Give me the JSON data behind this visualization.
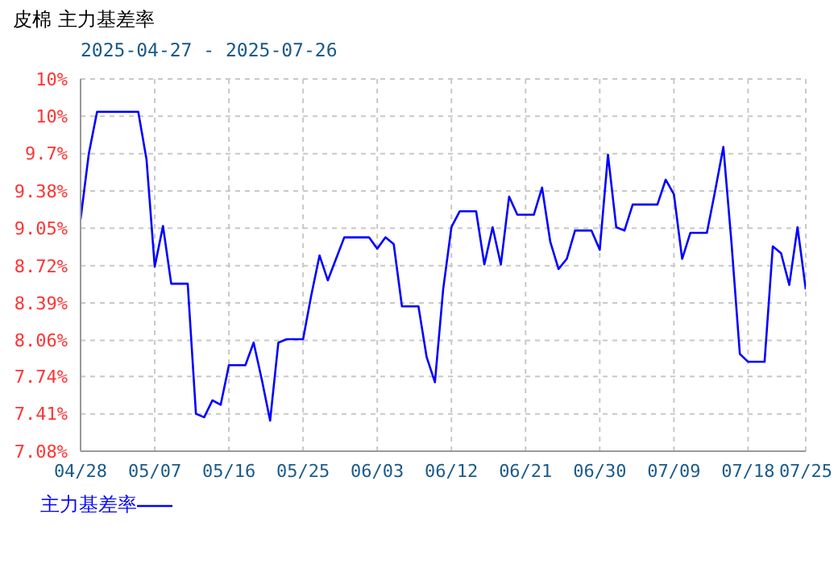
{
  "chart_data": {
    "type": "line",
    "title": "皮棉 主力基差率",
    "subtitle": "2025-04-27 - 2025-07-26",
    "x": [
      "2025-04-28",
      "2025-04-29",
      "2025-04-30",
      "2025-05-05",
      "2025-05-06",
      "2025-05-07",
      "2025-05-08",
      "2025-05-09",
      "2025-05-11",
      "2025-05-12",
      "2025-05-13",
      "2025-05-14",
      "2025-05-15",
      "2025-05-16",
      "2025-05-18",
      "2025-05-19",
      "2025-05-20",
      "2025-05-21",
      "2025-05-22",
      "2025-05-23",
      "2025-05-25",
      "2025-05-26",
      "2025-05-27",
      "2025-05-28",
      "2025-05-29",
      "2025-05-30",
      "2025-06-02",
      "2025-06-03",
      "2025-06-04",
      "2025-06-05",
      "2025-06-06",
      "2025-06-08",
      "2025-06-09",
      "2025-06-10",
      "2025-06-11",
      "2025-06-12",
      "2025-06-13",
      "2025-06-15",
      "2025-06-16",
      "2025-06-17",
      "2025-06-18",
      "2025-06-19",
      "2025-06-20",
      "2025-06-22",
      "2025-06-23",
      "2025-06-24",
      "2025-06-25",
      "2025-06-26",
      "2025-06-27",
      "2025-06-29",
      "2025-06-30",
      "2025-07-01",
      "2025-07-02",
      "2025-07-03",
      "2025-07-04",
      "2025-07-07",
      "2025-07-08",
      "2025-07-09",
      "2025-07-10",
      "2025-07-11",
      "2025-07-13",
      "2025-07-14",
      "2025-07-15",
      "2025-07-16",
      "2025-07-17",
      "2025-07-18",
      "2025-07-20",
      "2025-07-21",
      "2025-07-22",
      "2025-07-23",
      "2025-07-24",
      "2025-07-25"
    ],
    "series": [
      {
        "name": "主力基差率",
        "color": "#0000ff",
        "values": [
          9.13,
          9.71,
          10.08,
          10.08,
          9.66,
          8.71,
          9.07,
          8.56,
          8.56,
          7.41,
          7.38,
          7.53,
          7.49,
          7.84,
          7.84,
          8.04,
          7.71,
          7.35,
          8.04,
          8.07,
          8.07,
          8.46,
          8.81,
          8.59,
          8.78,
          8.97,
          8.97,
          8.87,
          8.97,
          8.91,
          8.36,
          8.36,
          7.91,
          7.69,
          8.51,
          9.06,
          9.2,
          9.2,
          8.73,
          9.06,
          8.73,
          9.33,
          9.17,
          9.17,
          9.41,
          8.93,
          8.69,
          8.78,
          9.03,
          9.03,
          8.86,
          9.7,
          9.06,
          9.03,
          9.26,
          9.26,
          9.48,
          9.35,
          8.78,
          9.01,
          9.01,
          9.38,
          9.77,
          8.91,
          7.94,
          7.87,
          7.87,
          8.89,
          8.83,
          8.55,
          9.06,
          8.51
        ]
      }
    ],
    "xlim": [
      "2025-04-28",
      "2025-07-25"
    ],
    "xticks": [
      {
        "value": "2025-04-28",
        "label": "04/28"
      },
      {
        "value": "2025-05-07",
        "label": "05/07"
      },
      {
        "value": "2025-05-16",
        "label": "05/16"
      },
      {
        "value": "2025-05-25",
        "label": "05/25"
      },
      {
        "value": "2025-06-03",
        "label": "06/03"
      },
      {
        "value": "2025-06-12",
        "label": "06/12"
      },
      {
        "value": "2025-06-21",
        "label": "06/21"
      },
      {
        "value": "2025-06-30",
        "label": "06/30"
      },
      {
        "value": "2025-07-09",
        "label": "07/09"
      },
      {
        "value": "2025-07-18",
        "label": "07/18"
      },
      {
        "value": "2025-07-25",
        "label": "07/25"
      }
    ],
    "ylim": [
      7.08,
      10.37
    ],
    "yticks": [
      {
        "value": 7.08,
        "label": "7.08%"
      },
      {
        "value": 7.41,
        "label": "7.41%"
      },
      {
        "value": 7.74,
        "label": "7.74%"
      },
      {
        "value": 8.06,
        "label": "8.06%"
      },
      {
        "value": 8.39,
        "label": "8.39%"
      },
      {
        "value": 8.72,
        "label": "8.72%"
      },
      {
        "value": 9.05,
        "label": "9.05%"
      },
      {
        "value": 9.38,
        "label": "9.38%"
      },
      {
        "value": 9.71,
        "label": "9.7%"
      },
      {
        "value": 10.04,
        "label": "10%"
      },
      {
        "value": 10.37,
        "label": "10%"
      }
    ],
    "grid": true,
    "legend": "bottom left",
    "line_style": "solid"
  }
}
